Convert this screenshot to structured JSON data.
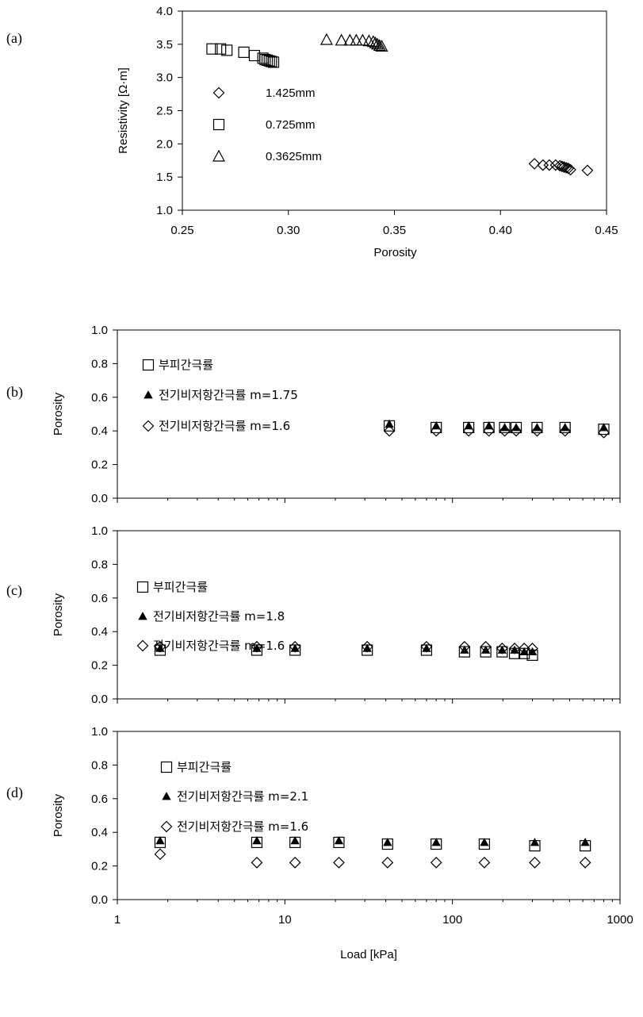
{
  "chart_data": [
    {
      "id": "a",
      "type": "scatter",
      "panel_label": "(a)",
      "xlabel": "Porosity",
      "ylabel": "Resistivity [Ω·m]",
      "xlim": [
        0.25,
        0.45
      ],
      "ylim": [
        1.0,
        4.0
      ],
      "x_scale": "linear",
      "xticks": [
        0.25,
        0.3,
        0.35,
        0.4,
        0.45
      ],
      "xtick_labels": [
        "0.25",
        "0.30",
        "0.35",
        "0.40",
        "0.45"
      ],
      "yticks": [
        1.0,
        1.5,
        2.0,
        2.5,
        3.0,
        3.5,
        4.0
      ],
      "ytick_labels": [
        "1.0",
        "1.5",
        "2.0",
        "2.5",
        "3.0",
        "3.5",
        "4.0"
      ],
      "legend_position": "left",
      "series": [
        {
          "name": "1.425mm",
          "marker": "diamond",
          "x": [
            0.416,
            0.42,
            0.423,
            0.426,
            0.428,
            0.429,
            0.43,
            0.431,
            0.432,
            0.433,
            0.441
          ],
          "y": [
            1.7,
            1.68,
            1.68,
            1.68,
            1.67,
            1.66,
            1.65,
            1.64,
            1.63,
            1.61,
            1.6
          ]
        },
        {
          "name": "0.725mm",
          "marker": "square",
          "x": [
            0.264,
            0.268,
            0.271,
            0.279,
            0.284,
            0.288,
            0.289,
            0.29,
            0.291,
            0.292,
            0.293
          ],
          "y": [
            3.43,
            3.43,
            3.41,
            3.38,
            3.33,
            3.29,
            3.27,
            3.26,
            3.25,
            3.24,
            3.23
          ]
        },
        {
          "name": "0.3625mm",
          "marker": "triangle",
          "x": [
            0.318,
            0.325,
            0.329,
            0.332,
            0.335,
            0.338,
            0.34,
            0.341,
            0.342,
            0.343,
            0.344
          ],
          "y": [
            3.57,
            3.56,
            3.56,
            3.56,
            3.56,
            3.55,
            3.54,
            3.52,
            3.5,
            3.48,
            3.47
          ]
        }
      ]
    },
    {
      "id": "b",
      "type": "scatter",
      "panel_label": "(b)",
      "xlabel": "",
      "ylabel": "Porosity",
      "xlim": [
        1,
        1000
      ],
      "ylim": [
        0.0,
        1.0
      ],
      "x_scale": "log",
      "yticks": [
        0.0,
        0.2,
        0.4,
        0.6,
        0.8,
        1.0
      ],
      "ytick_labels": [
        "0.0",
        "0.2",
        "0.4",
        "0.6",
        "0.8",
        "1.0"
      ],
      "legend_position": "top-left",
      "series": [
        {
          "name": "부피간극률",
          "marker": "square",
          "x": [
            42,
            80,
            125,
            165,
            205,
            240,
            320,
            470,
            800
          ],
          "y": [
            0.43,
            0.42,
            0.42,
            0.42,
            0.42,
            0.42,
            0.42,
            0.42,
            0.41
          ]
        },
        {
          "name": "전기비저항간극률 m=1.75",
          "marker": "filled-triangle",
          "x": [
            42,
            80,
            125,
            165,
            205,
            240,
            320,
            470,
            800
          ],
          "y": [
            0.44,
            0.43,
            0.43,
            0.43,
            0.42,
            0.42,
            0.42,
            0.42,
            0.42
          ]
        },
        {
          "name": "전기비저항간극률 m=1.6",
          "marker": "diamond",
          "x": [
            42,
            80,
            125,
            165,
            205,
            240,
            320,
            470,
            800
          ],
          "y": [
            0.4,
            0.4,
            0.4,
            0.4,
            0.4,
            0.4,
            0.4,
            0.4,
            0.39
          ]
        }
      ]
    },
    {
      "id": "c",
      "type": "scatter",
      "panel_label": "(c)",
      "xlabel": "",
      "ylabel": "Porosity",
      "xlim": [
        1,
        1000
      ],
      "ylim": [
        0.0,
        1.0
      ],
      "x_scale": "log",
      "yticks": [
        0.0,
        0.2,
        0.4,
        0.6,
        0.8,
        1.0
      ],
      "ytick_labels": [
        "0.0",
        "0.2",
        "0.4",
        "0.6",
        "0.8",
        "1.0"
      ],
      "legend_position": "top-left",
      "series": [
        {
          "name": "부피간극률",
          "marker": "square",
          "x": [
            1.8,
            6.8,
            11.5,
            31,
            70,
            118,
            158,
            198,
            235,
            268,
            300
          ],
          "y": [
            0.29,
            0.29,
            0.29,
            0.29,
            0.29,
            0.28,
            0.28,
            0.28,
            0.27,
            0.27,
            0.26
          ]
        },
        {
          "name": "전기비저항간극률 m=1.8",
          "marker": "filled-triangle",
          "x": [
            1.8,
            6.8,
            11.5,
            31,
            70,
            118,
            158,
            198,
            235,
            268,
            300
          ],
          "y": [
            0.3,
            0.3,
            0.3,
            0.3,
            0.3,
            0.29,
            0.29,
            0.29,
            0.29,
            0.28,
            0.28
          ]
        },
        {
          "name": "전기비저항간극률 m=1.6",
          "marker": "diamond",
          "x": [
            1.8,
            6.8,
            11.5,
            31,
            70,
            118,
            158,
            198,
            235,
            268,
            300
          ],
          "y": [
            0.31,
            0.31,
            0.31,
            0.31,
            0.31,
            0.31,
            0.31,
            0.3,
            0.3,
            0.3,
            0.3
          ]
        }
      ]
    },
    {
      "id": "d",
      "type": "scatter",
      "panel_label": "(d)",
      "xlabel": "Load [kPa]",
      "ylabel": "Porosity",
      "xlim": [
        1,
        1000
      ],
      "ylim": [
        0.0,
        1.0
      ],
      "x_scale": "log",
      "xticks": [
        1,
        10,
        100,
        1000
      ],
      "xtick_labels": [
        "1",
        "10",
        "100",
        "1000"
      ],
      "yticks": [
        0.0,
        0.2,
        0.4,
        0.6,
        0.8,
        1.0
      ],
      "ytick_labels": [
        "0.0",
        "0.2",
        "0.4",
        "0.6",
        "0.8",
        "1.0"
      ],
      "legend_position": "top-left",
      "series": [
        {
          "name": "부피간극률",
          "marker": "square",
          "x": [
            1.8,
            6.8,
            11.5,
            21,
            41,
            80,
            155,
            310,
            620
          ],
          "y": [
            0.34,
            0.34,
            0.34,
            0.34,
            0.33,
            0.33,
            0.33,
            0.32,
            0.32
          ]
        },
        {
          "name": "전기비저항간극률 m=2.1",
          "marker": "filled-triangle",
          "x": [
            1.8,
            6.8,
            11.5,
            21,
            41,
            80,
            155,
            310,
            620
          ],
          "y": [
            0.35,
            0.35,
            0.35,
            0.35,
            0.34,
            0.34,
            0.34,
            0.34,
            0.34
          ]
        },
        {
          "name": "전기비저항간극률 m=1.6",
          "marker": "diamond",
          "x": [
            1.8,
            6.8,
            11.5,
            21,
            41,
            80,
            155,
            310,
            620
          ],
          "y": [
            0.27,
            0.22,
            0.22,
            0.22,
            0.22,
            0.22,
            0.22,
            0.22,
            0.22
          ]
        }
      ]
    }
  ]
}
